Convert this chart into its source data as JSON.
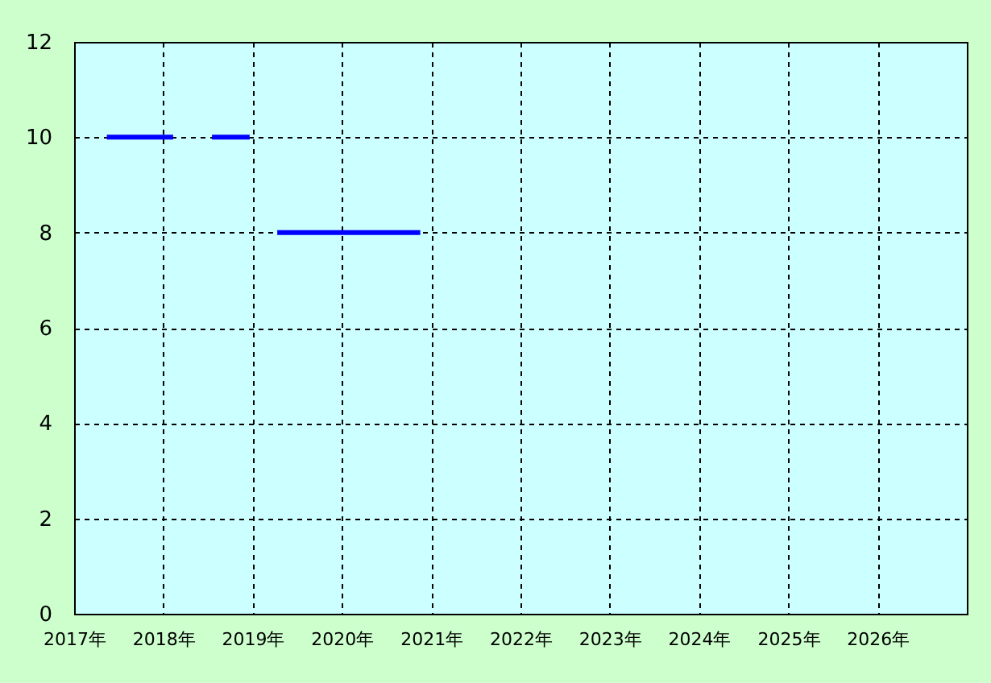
{
  "chart_data": {
    "type": "line",
    "x": [
      "2017-05-15",
      "2018-02-10",
      "2018-04-15",
      "2018-07-19",
      "2018-12-20",
      "2019-02-01",
      "2019-04-12",
      "2020-11-17"
    ],
    "series": [
      {
        "color": "#0000ff",
        "values": [
          10,
          10,
          null,
          10,
          10,
          null,
          8,
          8
        ]
      }
    ],
    "xlim": [
      "2017",
      "2027"
    ],
    "xticks": [
      {
        "value": "2017",
        "label": "2017年"
      },
      {
        "value": "2018",
        "label": "2018年"
      },
      {
        "value": "2019",
        "label": "2019年"
      },
      {
        "value": "2020",
        "label": "2020年"
      },
      {
        "value": "2021",
        "label": "2021年"
      },
      {
        "value": "2022",
        "label": "2022年"
      },
      {
        "value": "2023",
        "label": "2023年"
      },
      {
        "value": "2024",
        "label": "2024年"
      },
      {
        "value": "2025",
        "label": "2025年"
      },
      {
        "value": "2026",
        "label": "2026年"
      }
    ],
    "ylim": [
      0,
      12
    ],
    "yticks": [
      0,
      2,
      4,
      6,
      8,
      10,
      12
    ],
    "grid": true,
    "line_style": "solid"
  }
}
